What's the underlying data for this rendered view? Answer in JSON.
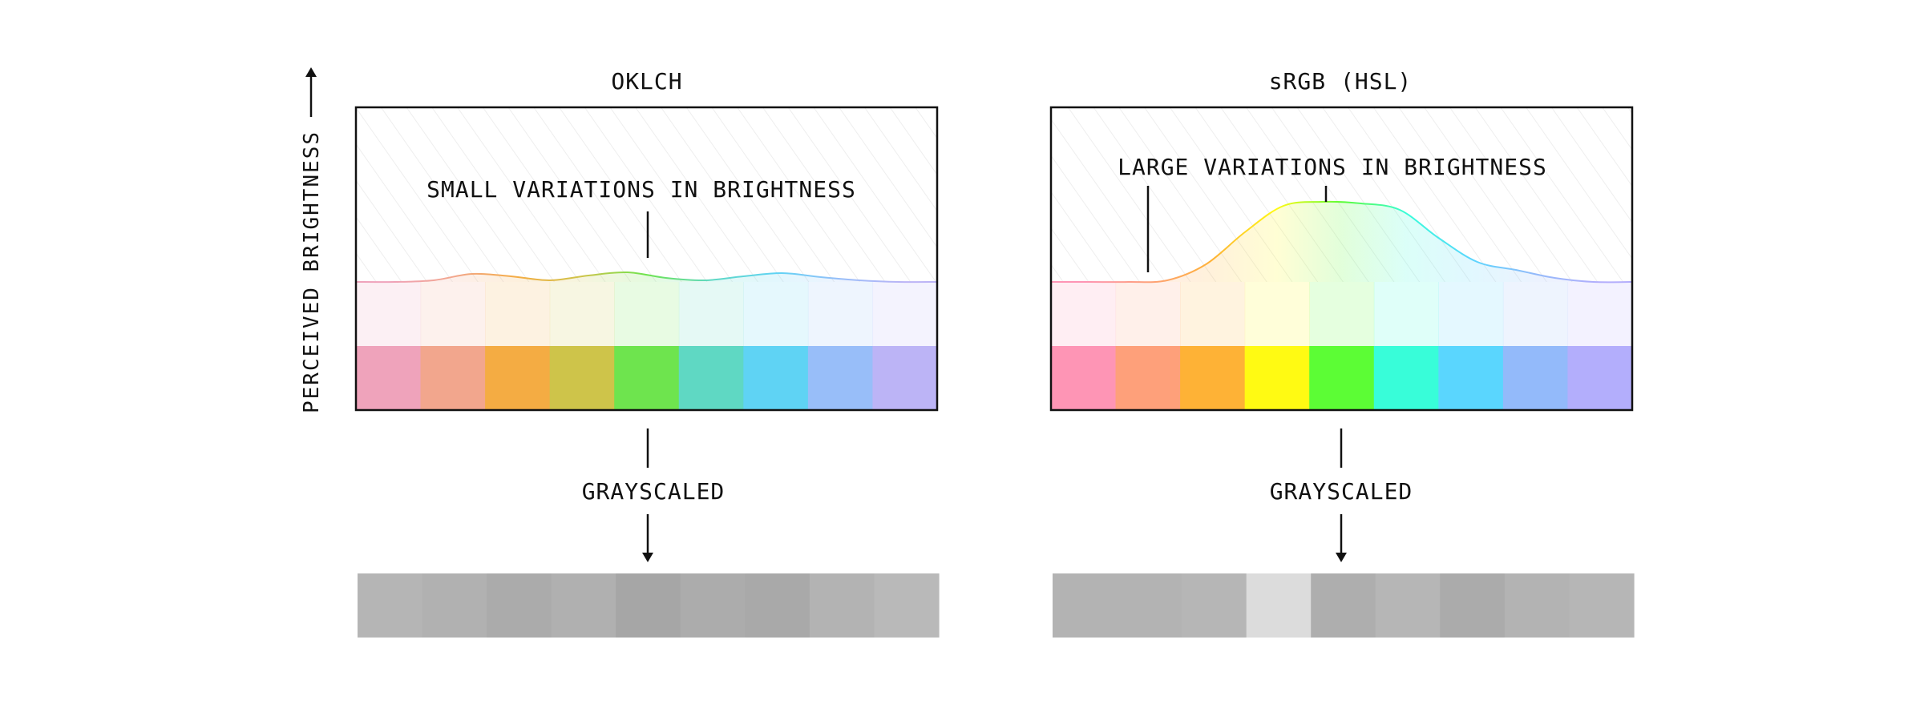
{
  "y_axis_label": "PERCEIVED BRIGHTNESS",
  "panels": [
    {
      "title": "OKLCH",
      "annotation": "SMALL VARIATIONS IN BRIGHTNESS",
      "grayscale_label": "GRAYSCALED",
      "swatches": [
        "#efa3bb",
        "#f2a68d",
        "#f4ac43",
        "#cec44a",
        "#6ee44e",
        "#5fd8c3",
        "#5fd3f4",
        "#98bef9",
        "#bcb4f6"
      ],
      "grays": [
        "#b5b5b5",
        "#b1b1b1",
        "#ababab",
        "#b0b0b0",
        "#a6a6a6",
        "#acacac",
        "#a9a9a9",
        "#b3b3b3",
        "#b9b9b9"
      ],
      "brightness_curve": [
        0,
        0,
        0.02,
        0.1,
        0.07,
        0.02,
        0.08,
        0.12,
        0.05,
        0.02,
        0.07,
        0.11,
        0.06,
        0.02,
        0.0,
        0.0
      ]
    },
    {
      "title": "sRGB (HSL)",
      "annotation": "LARGE VARIATIONS IN BRIGHTNESS",
      "grayscale_label": "GRAYSCALED",
      "swatches": [
        "#fe95b5",
        "#fea07a",
        "#feb236",
        "#fffa13",
        "#5cfd35",
        "#38fdd9",
        "#5ad6fe",
        "#93bafa",
        "#b3aefc"
      ],
      "grays": [
        "#b3b3b3",
        "#b3b3b3",
        "#b6b6b6",
        "#dcdcdc",
        "#aeaeae",
        "#b6b6b6",
        "#ababab",
        "#b3b3b3",
        "#b6b6b6"
      ],
      "brightness_curve": [
        0,
        0,
        0,
        0.02,
        0.22,
        0.62,
        0.95,
        1.0,
        0.98,
        0.9,
        0.55,
        0.25,
        0.15,
        0.05,
        0.0,
        0.0
      ]
    }
  ]
}
